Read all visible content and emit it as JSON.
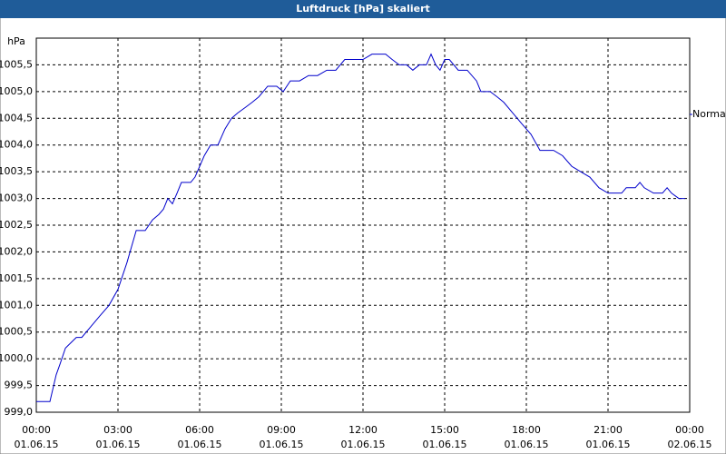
{
  "chart_data": {
    "type": "line",
    "title": "Luftdruck [hPa] skaliert",
    "y_unit": "hPa",
    "legend_position": "right",
    "grid": true,
    "x": [
      0,
      0.5,
      0.73,
      0.87,
      1.07,
      1.27,
      1.47,
      1.67,
      2,
      2.33,
      2.67,
      3,
      3.33,
      3.5,
      3.67,
      3.83,
      4,
      4.27,
      4.5,
      4.67,
      4.83,
      5,
      5.17,
      5.33,
      5.67,
      5.83,
      6,
      6.17,
      6.4,
      6.67,
      6.93,
      7.17,
      7.4,
      7.67,
      7.93,
      8.17,
      8.5,
      8.83,
      9.07,
      9.33,
      9.67,
      10,
      10.33,
      10.67,
      11,
      11.33,
      12,
      12.33,
      12.83,
      13.07,
      13.33,
      13.6,
      13.83,
      14.07,
      14.33,
      14.5,
      14.67,
      14.83,
      15,
      15.17,
      15.5,
      15.83,
      16.17,
      16.33,
      16.67,
      16.93,
      17.17,
      17.5,
      17.83,
      18.17,
      18.5,
      19,
      19.33,
      19.67,
      20,
      20.33,
      20.67,
      21,
      21.5,
      21.67,
      22,
      22.17,
      22.33,
      22.67,
      23,
      23.17,
      23.33,
      23.6,
      23.83
    ],
    "series": [
      {
        "name": "Normal",
        "color": "#0000cc",
        "values": [
          999.2,
          999.2,
          999.7,
          999.9,
          1000.2,
          1000.3,
          1000.4,
          1000.4,
          1000.6,
          1000.8,
          1001.0,
          1001.3,
          1001.8,
          1002.1,
          1002.4,
          1002.4,
          1002.4,
          1002.6,
          1002.7,
          1002.8,
          1003.0,
          1002.9,
          1003.1,
          1003.3,
          1003.3,
          1003.4,
          1003.6,
          1003.8,
          1004.0,
          1004.0,
          1004.3,
          1004.5,
          1004.6,
          1004.7,
          1004.8,
          1004.9,
          1005.1,
          1005.1,
          1005.0,
          1005.2,
          1005.2,
          1005.3,
          1005.3,
          1005.4,
          1005.4,
          1005.6,
          1005.6,
          1005.7,
          1005.7,
          1005.6,
          1005.5,
          1005.5,
          1005.4,
          1005.5,
          1005.5,
          1005.7,
          1005.5,
          1005.4,
          1005.6,
          1005.6,
          1005.4,
          1005.4,
          1005.2,
          1005.0,
          1005.0,
          1004.9,
          1004.8,
          1004.6,
          1004.4,
          1004.2,
          1003.9,
          1003.9,
          1003.8,
          1003.6,
          1003.5,
          1003.4,
          1003.2,
          1003.1,
          1003.1,
          1003.2,
          1003.2,
          1003.3,
          1003.2,
          1003.1,
          1003.1,
          1003.2,
          1003.1,
          1003.0,
          1003.0
        ]
      }
    ],
    "xlim": [
      0,
      24
    ],
    "xticks": [
      {
        "value": 0,
        "label": "00:00",
        "date": "01.06.15"
      },
      {
        "value": 3,
        "label": "03:00",
        "date": "01.06.15"
      },
      {
        "value": 6,
        "label": "06:00",
        "date": "01.06.15"
      },
      {
        "value": 9,
        "label": "09:00",
        "date": "01.06.15"
      },
      {
        "value": 12,
        "label": "12:00",
        "date": "01.06.15"
      },
      {
        "value": 15,
        "label": "15:00",
        "date": "01.06.15"
      },
      {
        "value": 18,
        "label": "18:00",
        "date": "01.06.15"
      },
      {
        "value": 21,
        "label": "21:00",
        "date": "01.06.15"
      },
      {
        "value": 24,
        "label": "00:00",
        "date": "02.06.15"
      }
    ],
    "ylim": [
      999,
      1006
    ],
    "yticks": [
      {
        "value": 999,
        "label": "999,0"
      },
      {
        "value": 999.5,
        "label": "999,5"
      },
      {
        "value": 1000,
        "label": "1000,0"
      },
      {
        "value": 1000.5,
        "label": "1000,5"
      },
      {
        "value": 1001,
        "label": "1001,0"
      },
      {
        "value": 1001.5,
        "label": "1001,5"
      },
      {
        "value": 1002,
        "label": "1002,0"
      },
      {
        "value": 1002.5,
        "label": "1002,5"
      },
      {
        "value": 1003,
        "label": "1003,0"
      },
      {
        "value": 1003.5,
        "label": "1003,5"
      },
      {
        "value": 1004,
        "label": "1004,0"
      },
      {
        "value": 1004.5,
        "label": "1004,5"
      },
      {
        "value": 1005,
        "label": "1005,0"
      },
      {
        "value": 1005.5,
        "label": "1005,5"
      }
    ]
  }
}
